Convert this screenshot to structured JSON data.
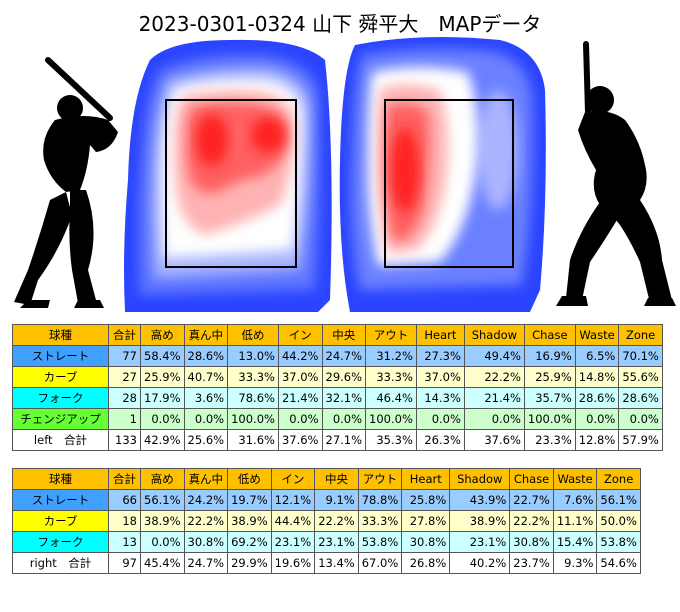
{
  "title": "2023-0301-0324 山下 舜平大　MAPデータ",
  "colors": {
    "header": "#ffc000",
    "ストレート_label": "#3fa0ff",
    "ストレート_row": "#99ccff",
    "カーブ_label": "#ffff00",
    "カーブ_row": "#ffffcc",
    "フォーク_label": "#00ffff",
    "フォーク_row": "#ccffff",
    "チェンジアップ_label": "#66ff33",
    "チェンジアップ_row": "#ccffcc",
    "heat_hot": "#ff2020",
    "heat_cold": "#2040ff"
  },
  "icons": [
    "batter-left-silhouette-icon",
    "batter-right-silhouette-icon"
  ],
  "chart_data": [
    {
      "type": "heatmap",
      "description_side": "left",
      "has_strike_zone_box": true
    },
    {
      "type": "heatmap",
      "description_side": "right",
      "has_strike_zone_box": true
    },
    {
      "type": "table",
      "side": "left",
      "columns": [
        "球種",
        "合計",
        "高め",
        "真ん中",
        "低め",
        "イン",
        "中央",
        "アウト",
        "Heart",
        "Shadow",
        "Chase",
        "Waste",
        "Zone"
      ],
      "rows": [
        [
          "ストレート",
          "77",
          "58.4%",
          "28.6%",
          "13.0%",
          "44.2%",
          "24.7%",
          "31.2%",
          "27.3%",
          "49.4%",
          "16.9%",
          "6.5%",
          "70.1%"
        ],
        [
          "カーブ",
          "27",
          "25.9%",
          "40.7%",
          "33.3%",
          "37.0%",
          "29.6%",
          "33.3%",
          "37.0%",
          "22.2%",
          "25.9%",
          "14.8%",
          "55.6%"
        ],
        [
          "フォーク",
          "28",
          "17.9%",
          "3.6%",
          "78.6%",
          "21.4%",
          "32.1%",
          "46.4%",
          "14.3%",
          "21.4%",
          "35.7%",
          "28.6%",
          "28.6%"
        ],
        [
          "チェンジアップ",
          "1",
          "0.0%",
          "0.0%",
          "100.0%",
          "0.0%",
          "0.0%",
          "100.0%",
          "0.0%",
          "0.0%",
          "100.0%",
          "0.0%",
          "0.0%"
        ],
        [
          "left　合計",
          "133",
          "42.9%",
          "25.6%",
          "31.6%",
          "37.6%",
          "27.1%",
          "35.3%",
          "26.3%",
          "37.6%",
          "23.3%",
          "12.8%",
          "57.9%"
        ]
      ]
    },
    {
      "type": "table",
      "side": "right",
      "columns": [
        "球種",
        "合計",
        "高め",
        "真ん中",
        "低め",
        "イン",
        "中央",
        "アウト",
        "Heart",
        "Shadow",
        "Chase",
        "Waste",
        "Zone"
      ],
      "rows": [
        [
          "ストレート",
          "66",
          "56.1%",
          "24.2%",
          "19.7%",
          "12.1%",
          "9.1%",
          "78.8%",
          "25.8%",
          "43.9%",
          "22.7%",
          "7.6%",
          "56.1%"
        ],
        [
          "カーブ",
          "18",
          "38.9%",
          "22.2%",
          "38.9%",
          "44.4%",
          "22.2%",
          "33.3%",
          "27.8%",
          "38.9%",
          "22.2%",
          "11.1%",
          "50.0%"
        ],
        [
          "フォーク",
          "13",
          "0.0%",
          "30.8%",
          "69.2%",
          "23.1%",
          "23.1%",
          "53.8%",
          "30.8%",
          "23.1%",
          "30.8%",
          "15.4%",
          "53.8%"
        ],
        [
          "right　合計",
          "97",
          "45.4%",
          "24.7%",
          "29.9%",
          "19.6%",
          "13.4%",
          "67.0%",
          "26.8%",
          "40.2%",
          "23.7%",
          "9.3%",
          "54.6%"
        ]
      ]
    }
  ]
}
